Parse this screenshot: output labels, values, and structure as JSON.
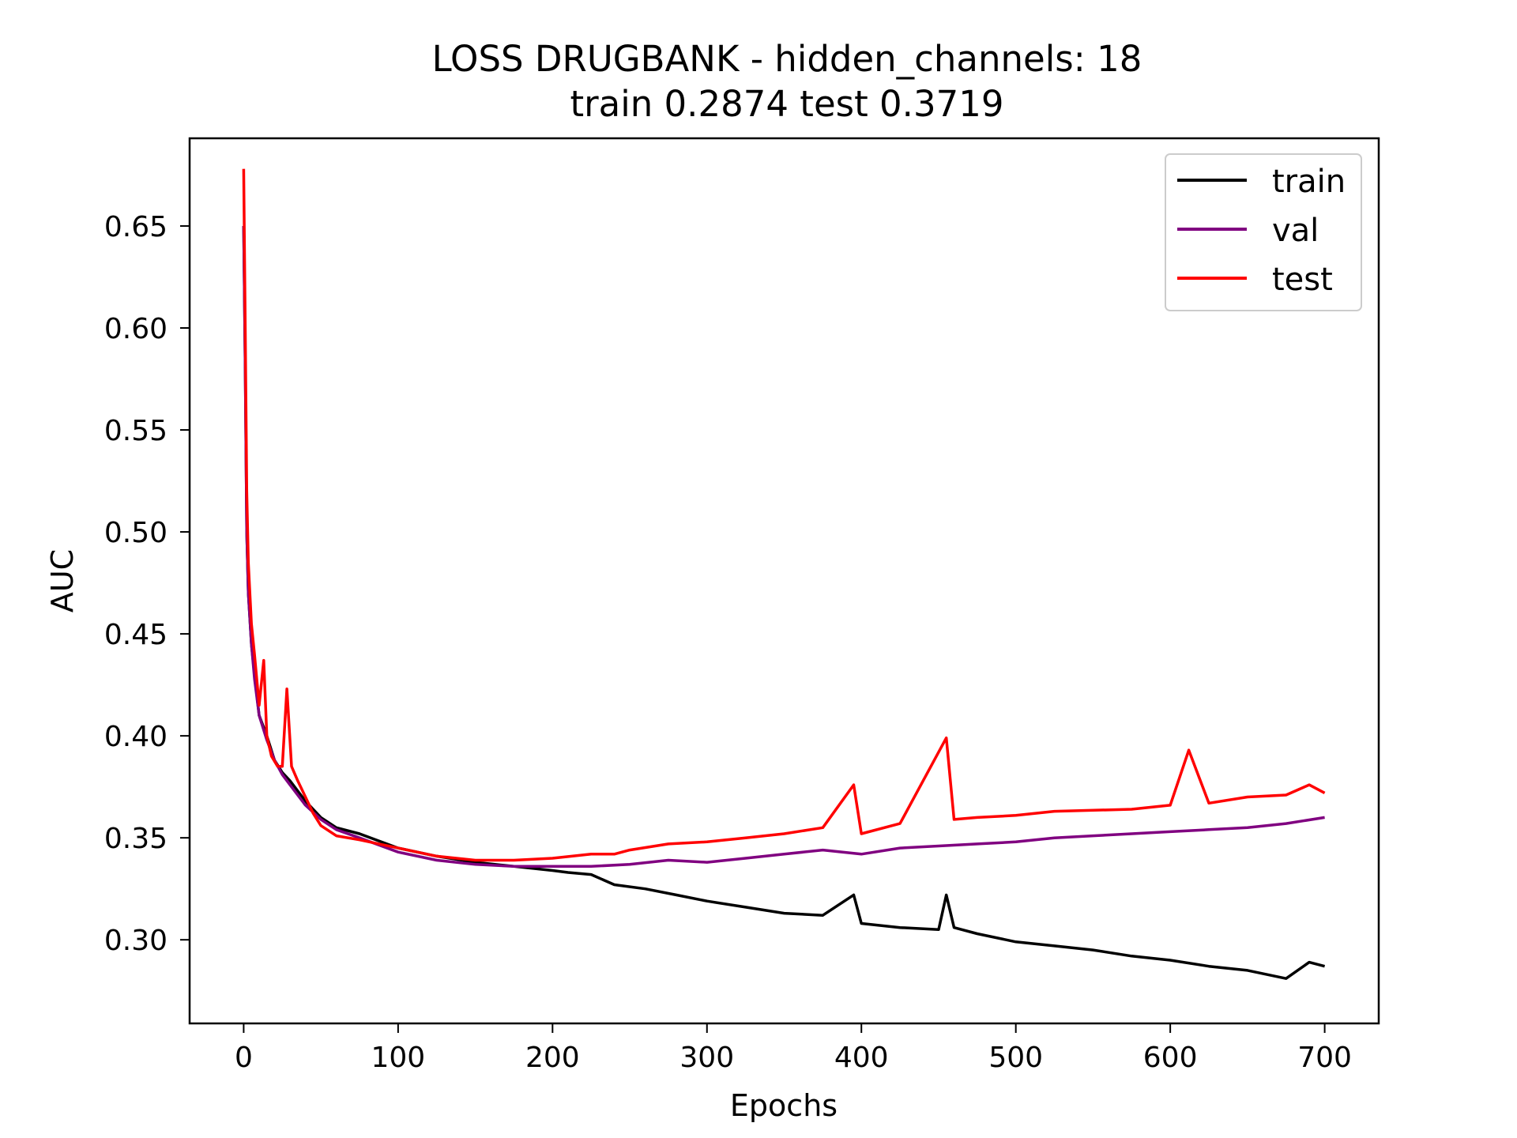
{
  "chart_data": {
    "type": "line",
    "title": "LOSS DRUGBANK - hidden_channels: 18",
    "subtitle": "train 0.2874 test 0.3719",
    "xlabel": "Epochs",
    "ylabel": "AUC",
    "xlim": [
      -35,
      735
    ],
    "ylim": [
      0.259,
      0.693
    ],
    "xticks": [
      0,
      100,
      200,
      300,
      400,
      500,
      600,
      700
    ],
    "xtick_labels": [
      "0",
      "100",
      "200",
      "300",
      "400",
      "500",
      "600",
      "700"
    ],
    "yticks": [
      0.3,
      0.35,
      0.4,
      0.45,
      0.5,
      0.55,
      0.6,
      0.65
    ],
    "ytick_labels": [
      "0.30",
      "0.35",
      "0.40",
      "0.45",
      "0.50",
      "0.55",
      "0.60",
      "0.65"
    ],
    "grid": false,
    "legend_position": "top-right",
    "series": [
      {
        "name": "train",
        "color": "#000000",
        "x": [
          0,
          1,
          2,
          3,
          5,
          7,
          10,
          15,
          20,
          25,
          30,
          40,
          50,
          60,
          75,
          100,
          125,
          150,
          175,
          200,
          210,
          225,
          240,
          260,
          280,
          300,
          325,
          350,
          375,
          395,
          400,
          425,
          450,
          455,
          460,
          475,
          500,
          525,
          550,
          575,
          600,
          625,
          650,
          675,
          690,
          700
        ],
        "y": [
          0.65,
          0.58,
          0.5,
          0.47,
          0.445,
          0.43,
          0.41,
          0.4,
          0.388,
          0.382,
          0.378,
          0.368,
          0.36,
          0.355,
          0.352,
          0.345,
          0.341,
          0.338,
          0.336,
          0.334,
          0.333,
          0.332,
          0.327,
          0.325,
          0.322,
          0.319,
          0.316,
          0.313,
          0.312,
          0.322,
          0.308,
          0.306,
          0.305,
          0.322,
          0.306,
          0.303,
          0.299,
          0.297,
          0.295,
          0.292,
          0.29,
          0.287,
          0.285,
          0.281,
          0.289,
          0.287
        ]
      },
      {
        "name": "val",
        "color": "#800080",
        "x": [
          0,
          1,
          2,
          3,
          5,
          7,
          10,
          15,
          20,
          25,
          30,
          40,
          50,
          60,
          75,
          100,
          125,
          150,
          175,
          200,
          225,
          250,
          275,
          300,
          325,
          350,
          375,
          400,
          425,
          450,
          475,
          500,
          525,
          550,
          575,
          600,
          625,
          650,
          675,
          700
        ],
        "y": [
          0.65,
          0.58,
          0.5,
          0.47,
          0.445,
          0.428,
          0.41,
          0.398,
          0.388,
          0.381,
          0.376,
          0.366,
          0.359,
          0.354,
          0.35,
          0.343,
          0.339,
          0.337,
          0.336,
          0.336,
          0.336,
          0.337,
          0.339,
          0.338,
          0.34,
          0.342,
          0.344,
          0.342,
          0.345,
          0.346,
          0.347,
          0.348,
          0.35,
          0.351,
          0.352,
          0.353,
          0.354,
          0.355,
          0.357,
          0.36
        ]
      },
      {
        "name": "test",
        "color": "#ff0000",
        "x": [
          0,
          1,
          2,
          3,
          5,
          7,
          10,
          13,
          15,
          18,
          22,
          25,
          28,
          31,
          35,
          40,
          45,
          50,
          60,
          75,
          100,
          125,
          150,
          175,
          200,
          225,
          240,
          250,
          275,
          300,
          325,
          350,
          375,
          395,
          400,
          425,
          455,
          460,
          475,
          500,
          525,
          575,
          600,
          612,
          625,
          650,
          675,
          690,
          700
        ],
        "y": [
          0.678,
          0.6,
          0.52,
          0.485,
          0.455,
          0.44,
          0.415,
          0.437,
          0.4,
          0.39,
          0.385,
          0.385,
          0.423,
          0.385,
          0.378,
          0.37,
          0.362,
          0.356,
          0.351,
          0.349,
          0.345,
          0.341,
          0.339,
          0.339,
          0.34,
          0.342,
          0.342,
          0.344,
          0.347,
          0.348,
          0.35,
          0.352,
          0.355,
          0.376,
          0.352,
          0.357,
          0.399,
          0.359,
          0.36,
          0.361,
          0.363,
          0.364,
          0.366,
          0.393,
          0.367,
          0.37,
          0.371,
          0.376,
          0.372
        ]
      }
    ]
  }
}
